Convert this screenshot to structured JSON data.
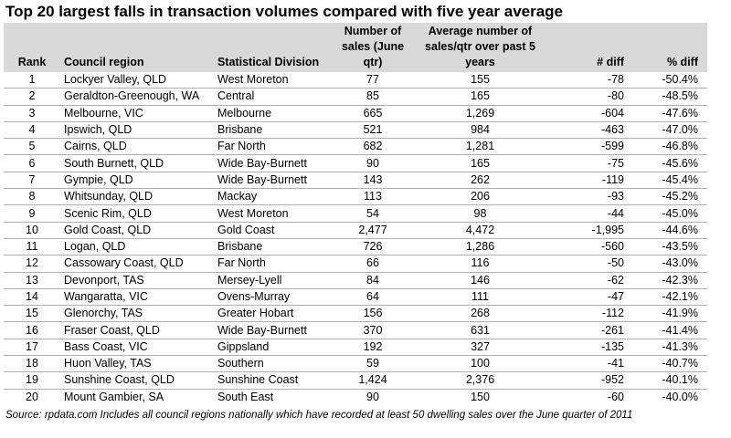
{
  "title": "Top 20 largest falls in transaction volumes compared with five year average",
  "headers": {
    "rank": "Rank",
    "region": "Council region",
    "division": "Statistical Division",
    "sales": "Number of sales (June qtr)",
    "avg": "Average number of sales/qtr over past 5 years",
    "diff": "# diff",
    "pct": "% diff"
  },
  "rows": [
    {
      "rank": "1",
      "region": "Lockyer Valley, QLD",
      "division": "West Moreton",
      "sales": "77",
      "avg": "155",
      "diff": "-78",
      "pct": "-50.4%"
    },
    {
      "rank": "2",
      "region": "Geraldton-Greenough, WA",
      "division": "Central",
      "sales": "85",
      "avg": "165",
      "diff": "-80",
      "pct": "-48.5%"
    },
    {
      "rank": "3",
      "region": "Melbourne, VIC",
      "division": "Melbourne",
      "sales": "665",
      "avg": "1,269",
      "diff": "-604",
      "pct": "-47.6%"
    },
    {
      "rank": "4",
      "region": "Ipswich, QLD",
      "division": "Brisbane",
      "sales": "521",
      "avg": "984",
      "diff": "-463",
      "pct": "-47.0%"
    },
    {
      "rank": "5",
      "region": "Cairns, QLD",
      "division": "Far North",
      "sales": "682",
      "avg": "1,281",
      "diff": "-599",
      "pct": "-46.8%"
    },
    {
      "rank": "6",
      "region": "South Burnett, QLD",
      "division": "Wide Bay-Burnett",
      "sales": "90",
      "avg": "165",
      "diff": "-75",
      "pct": "-45.6%"
    },
    {
      "rank": "7",
      "region": "Gympie, QLD",
      "division": "Wide Bay-Burnett",
      "sales": "143",
      "avg": "262",
      "diff": "-119",
      "pct": "-45.4%"
    },
    {
      "rank": "8",
      "region": "Whitsunday, QLD",
      "division": "Mackay",
      "sales": "113",
      "avg": "206",
      "diff": "-93",
      "pct": "-45.2%"
    },
    {
      "rank": "9",
      "region": "Scenic Rim, QLD",
      "division": "West Moreton",
      "sales": "54",
      "avg": "98",
      "diff": "-44",
      "pct": "-45.0%"
    },
    {
      "rank": "10",
      "region": "Gold Coast, QLD",
      "division": "Gold Coast",
      "sales": "2,477",
      "avg": "4,472",
      "diff": "-1,995",
      "pct": "-44.6%"
    },
    {
      "rank": "11",
      "region": "Logan, QLD",
      "division": "Brisbane",
      "sales": "726",
      "avg": "1,286",
      "diff": "-560",
      "pct": "-43.5%"
    },
    {
      "rank": "12",
      "region": "Cassowary Coast, QLD",
      "division": "Far North",
      "sales": "66",
      "avg": "116",
      "diff": "-50",
      "pct": "-43.0%"
    },
    {
      "rank": "13",
      "region": "Devonport, TAS",
      "division": "Mersey-Lyell",
      "sales": "84",
      "avg": "146",
      "diff": "-62",
      "pct": "-42.3%"
    },
    {
      "rank": "14",
      "region": "Wangaratta, VIC",
      "division": "Ovens-Murray",
      "sales": "64",
      "avg": "111",
      "diff": "-47",
      "pct": "-42.1%"
    },
    {
      "rank": "15",
      "region": "Glenorchy, TAS",
      "division": "Greater Hobart",
      "sales": "156",
      "avg": "268",
      "diff": "-112",
      "pct": "-41.9%"
    },
    {
      "rank": "16",
      "region": "Fraser Coast, QLD",
      "division": "Wide Bay-Burnett",
      "sales": "370",
      "avg": "631",
      "diff": "-261",
      "pct": "-41.4%"
    },
    {
      "rank": "17",
      "region": "Bass Coast, VIC",
      "division": "Gippsland",
      "sales": "192",
      "avg": "327",
      "diff": "-135",
      "pct": "-41.3%"
    },
    {
      "rank": "18",
      "region": "Huon Valley, TAS",
      "division": "Southern",
      "sales": "59",
      "avg": "100",
      "diff": "-41",
      "pct": "-40.7%"
    },
    {
      "rank": "19",
      "region": "Sunshine Coast, QLD",
      "division": "Sunshine Coast",
      "sales": "1,424",
      "avg": "2,376",
      "diff": "-952",
      "pct": "-40.1%"
    },
    {
      "rank": "20",
      "region": "Mount Gambier, SA",
      "division": "South East",
      "sales": "90",
      "avg": "150",
      "diff": "-60",
      "pct": "-40.0%"
    }
  ],
  "source": "Source:  rpdata.com  Includes all council regions nationally which have recorded at least 50 dwelling sales over the June quarter of 2011",
  "colors": {
    "header_bg": "#d9d9d9",
    "row_rule": "#b0b0b0"
  }
}
